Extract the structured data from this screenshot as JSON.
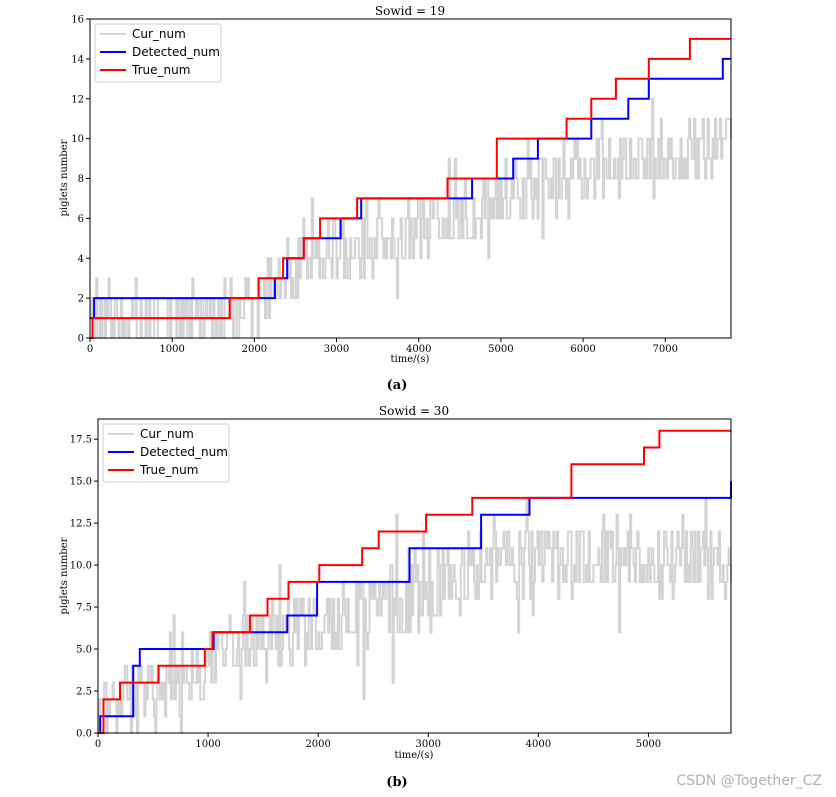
{
  "chart_data": [
    {
      "type": "line",
      "title": "Sowid = 19",
      "xlabel": "time/(s)",
      "ylabel": "piglets number",
      "xlim": [
        0,
        7800
      ],
      "ylim": [
        0,
        16
      ],
      "x_ticks": [
        0,
        1000,
        2000,
        3000,
        4000,
        5000,
        6000,
        7000
      ],
      "y_ticks": [
        0,
        2,
        4,
        6,
        8,
        10,
        12,
        14,
        16
      ],
      "y_tick_labels": [
        "0",
        "2",
        "4",
        "6",
        "8",
        "10",
        "12",
        "14",
        "16"
      ],
      "caption": "(a)",
      "legend": {
        "placement": "top-left",
        "entries": [
          "Cur_num",
          "Detected_num",
          "True_num"
        ]
      },
      "series": [
        {
          "name": "Cur_num",
          "color": "#d3d3d3",
          "kind": "noisy",
          "mean": {
            "x": [
              0,
              1700,
              2000,
              2600,
              3500,
              4500,
              5500,
              6500,
              7800
            ],
            "y": [
              1,
              1,
              2,
              4,
              5,
              6,
              8,
              9,
              10
            ]
          },
          "spread": 1.6
        },
        {
          "name": "Detected_num",
          "color": "#0000ff",
          "kind": "step",
          "x": [
            0,
            50,
            2250,
            2400,
            2600,
            3050,
            3300,
            3550,
            4650,
            5150,
            5450,
            6100,
            6550,
            6800,
            7700,
            7800
          ],
          "y": [
            1,
            2,
            3,
            4,
            5,
            6,
            7,
            7,
            8,
            9,
            10,
            11,
            12,
            13,
            14,
            14
          ]
        },
        {
          "name": "True_num",
          "color": "#ff0000",
          "kind": "step",
          "x": [
            0,
            30,
            1700,
            2050,
            2350,
            2600,
            2800,
            3250,
            4350,
            4950,
            5800,
            6100,
            6400,
            6800,
            7300,
            7800
          ],
          "y": [
            0,
            1,
            2,
            3,
            4,
            5,
            6,
            7,
            8,
            10,
            11,
            12,
            13,
            14,
            15,
            15
          ]
        }
      ]
    },
    {
      "type": "line",
      "title": "Sowid = 30",
      "xlabel": "time/(s)",
      "ylabel": "piglets number",
      "xlim": [
        0,
        5750
      ],
      "ylim": [
        0,
        18.7
      ],
      "x_ticks": [
        0,
        1000,
        2000,
        3000,
        4000,
        5000
      ],
      "y_ticks": [
        0,
        2.5,
        5,
        7.5,
        10,
        12.5,
        15,
        17.5
      ],
      "y_tick_labels": [
        "0.0",
        "2.5",
        "5.0",
        "7.5",
        "10.0",
        "12.5",
        "15.0",
        "17.5"
      ],
      "caption": "(b)",
      "legend": {
        "placement": "top-left",
        "entries": [
          "Cur_num",
          "Detected_num",
          "True_num"
        ]
      },
      "series": [
        {
          "name": "Cur_num",
          "color": "#d3d3d3",
          "kind": "noisy",
          "mean": {
            "x": [
              0,
              500,
              1000,
              1500,
              2000,
              2500,
              3000,
              3500,
              4000,
              4500,
              5000,
              5750
            ],
            "y": [
              1,
              2.5,
              4,
              5.5,
              6.5,
              7.5,
              8.5,
              10,
              10.5,
              10.5,
              10.5,
              10
            ]
          },
          "spread": 2.2
        },
        {
          "name": "Detected_num",
          "color": "#0000ff",
          "kind": "step",
          "x": [
            0,
            20,
            320,
            380,
            1050,
            1720,
            1990,
            2830,
            3480,
            3920,
            5750
          ],
          "y": [
            0,
            1,
            4,
            5,
            6,
            7,
            9,
            11,
            13,
            14,
            15
          ]
        },
        {
          "name": "True_num",
          "color": "#ff0000",
          "kind": "step",
          "x": [
            0,
            50,
            200,
            550,
            970,
            1040,
            1380,
            1540,
            1730,
            2010,
            2400,
            2550,
            2980,
            3400,
            4300,
            4960,
            5100,
            5750
          ],
          "y": [
            0,
            2,
            3,
            4,
            5,
            6,
            7,
            8,
            9,
            10,
            11,
            12,
            13,
            14,
            16,
            17,
            18,
            18
          ]
        }
      ]
    }
  ],
  "watermark": "CSDN @Together_CZ"
}
